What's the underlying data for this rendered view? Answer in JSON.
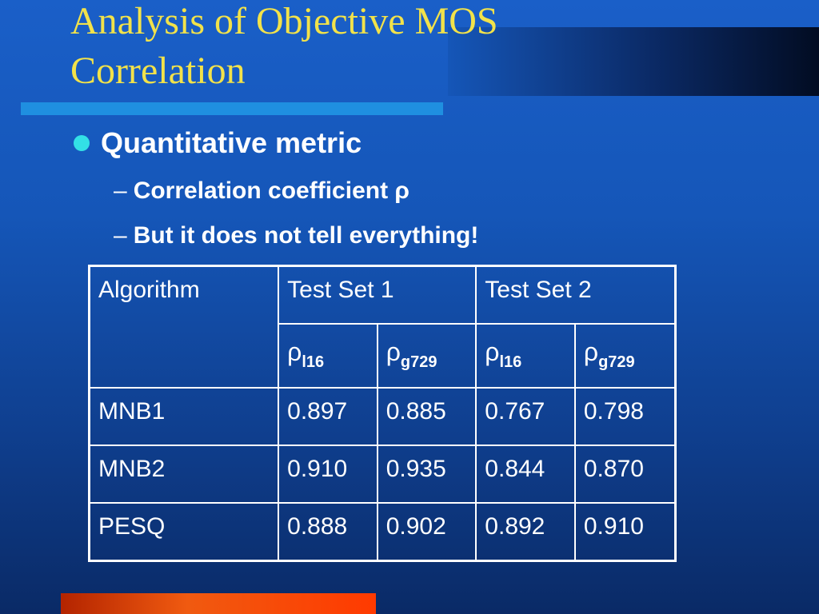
{
  "slide": {
    "title": "Analysis of Objective MOS Correlation",
    "bullet": "Quantitative metric",
    "subpoints": [
      {
        "dash": "–",
        "text": "Correlation coefficient ρ"
      },
      {
        "dash": "–",
        "text": "But it does not tell everything!"
      }
    ]
  },
  "table": {
    "headers": {
      "algorithm": "Algorithm",
      "test_set_1": "Test Set 1",
      "test_set_2": "Test Set 2"
    },
    "subheaders": [
      {
        "symbol": "ρ",
        "sub": "l16"
      },
      {
        "symbol": "ρ",
        "sub": "g729"
      },
      {
        "symbol": "ρ",
        "sub": "l16"
      },
      {
        "symbol": "ρ",
        "sub": "g729"
      }
    ],
    "rows": [
      {
        "name": "MNB1",
        "values": [
          "0.897",
          "0.885",
          "0.767",
          "0.798"
        ]
      },
      {
        "name": "MNB2",
        "values": [
          "0.910",
          "0.935",
          "0.844",
          "0.870"
        ]
      },
      {
        "name": "PESQ",
        "values": [
          "0.888",
          "0.902",
          "0.892",
          "0.910"
        ]
      }
    ]
  },
  "colors": {
    "background": "#1556b8",
    "title": "#f2e24a",
    "bullet_dot": "#33e0e6",
    "accent_bar": "#1f8fe0",
    "bottom_bar": "#f05a10",
    "text": "#ffffff"
  }
}
